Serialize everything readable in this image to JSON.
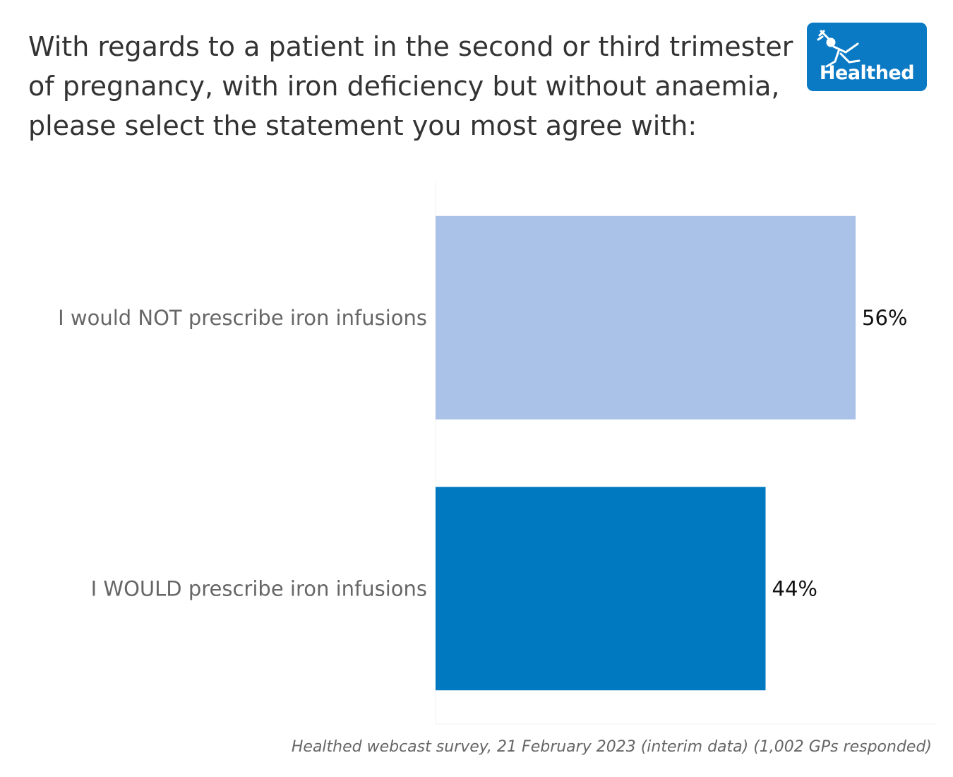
{
  "title": "With regards to a patient in the second or third trimester of pregnancy, with iron deficiency but without anaemia, please select the statement you most agree with:",
  "logo": {
    "text": "Healthed",
    "color": "#0b7ac5"
  },
  "source": "Healthed webcast survey, 21 February 2023 (interim data) (1,002 GPs responded)",
  "chart_data": {
    "type": "bar",
    "orientation": "horizontal",
    "categories": [
      "I would NOT prescribe iron infusions",
      "I WOULD prescribe iron infusions"
    ],
    "values": [
      56,
      44
    ],
    "value_labels": [
      "56%",
      "44%"
    ],
    "colors": [
      "#aac2e7",
      "#0079c1"
    ],
    "xlim": [
      0,
      60
    ],
    "grid": false
  }
}
